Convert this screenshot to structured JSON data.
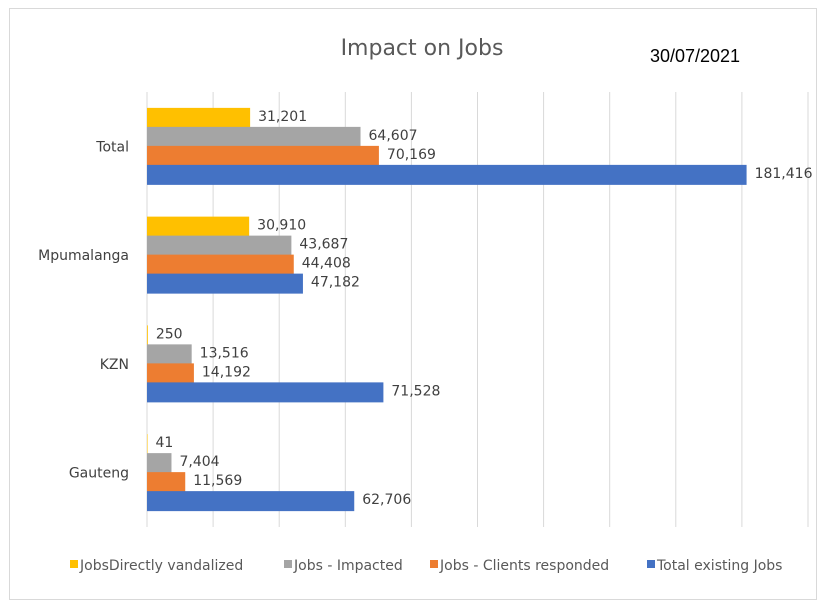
{
  "date_stamp": "30/07/2021",
  "chart_data": {
    "type": "bar",
    "orientation": "horizontal",
    "title": "Impact on Jobs",
    "categories": [
      "Total",
      "Mpumalanga",
      "KZN",
      "Gauteng"
    ],
    "series": [
      {
        "name": "JobsDirectly vandalized",
        "color": "#FFC000",
        "values": [
          31201,
          30910,
          250,
          41
        ],
        "labels": [
          "31,201",
          "30,910",
          "250",
          "41"
        ]
      },
      {
        "name": "Jobs - Impacted",
        "color": "#A5A5A5",
        "values": [
          64607,
          43687,
          13516,
          7404
        ],
        "labels": [
          "64,607",
          "43,687",
          "13,516",
          "7,404"
        ]
      },
      {
        "name": "Jobs - Clients responded",
        "color": "#ED7D31",
        "values": [
          70169,
          44408,
          14192,
          11569
        ],
        "labels": [
          "70,169",
          "44,408",
          "14,192",
          "11,569"
        ]
      },
      {
        "name": "Total existing Jobs",
        "color": "#4472C4",
        "values": [
          181416,
          47182,
          71528,
          62706
        ],
        "labels": [
          "181,416",
          "47,182",
          "71,528",
          "62,706"
        ]
      }
    ],
    "xlim": [
      0,
      200000
    ],
    "grid": true,
    "legend_position": "bottom"
  }
}
